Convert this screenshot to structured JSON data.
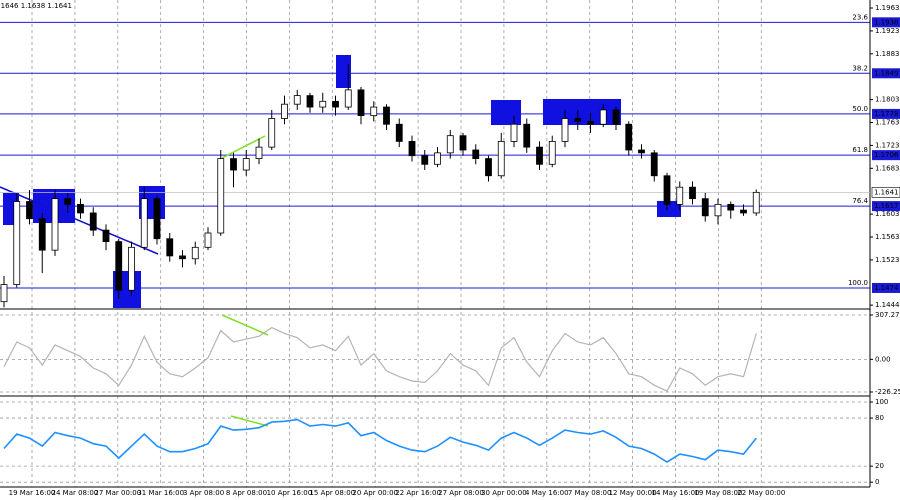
{
  "header": "1.1646 1.1638 1.1641",
  "chart_data": [
    {
      "type": "candlestick",
      "open": [
        1.145,
        1.148,
        1.1625,
        1.1595,
        1.154,
        1.163,
        1.162,
        1.1605,
        1.1575,
        1.1555,
        1.147,
        1.1545,
        1.163,
        1.156,
        1.153,
        1.1525,
        1.1545,
        1.157,
        1.17,
        1.168,
        1.17,
        1.172,
        1.177,
        1.1795,
        1.181,
        1.179,
        1.18,
        1.179,
        1.182,
        1.1775,
        1.179,
        1.176,
        1.173,
        1.1705,
        1.169,
        1.171,
        1.174,
        1.1715,
        1.17,
        1.167,
        1.173,
        1.176,
        1.172,
        1.169,
        1.173,
        1.177,
        1.1765,
        1.176,
        1.1785,
        1.176,
        1.1715,
        1.171,
        1.167,
        1.162,
        1.165,
        1.163,
        1.16,
        1.162,
        1.161,
        1.1605
      ],
      "high": [
        1.1495,
        1.164,
        1.1645,
        1.1605,
        1.1645,
        1.164,
        1.163,
        1.1615,
        1.1585,
        1.156,
        1.1555,
        1.165,
        1.1635,
        1.157,
        1.154,
        1.1555,
        1.158,
        1.1715,
        1.171,
        1.1715,
        1.1735,
        1.1785,
        1.181,
        1.182,
        1.1815,
        1.1815,
        1.181,
        1.1865,
        1.1825,
        1.18,
        1.1795,
        1.177,
        1.174,
        1.1715,
        1.172,
        1.175,
        1.1745,
        1.1725,
        1.1705,
        1.1745,
        1.1775,
        1.177,
        1.173,
        1.174,
        1.1785,
        1.1785,
        1.178,
        1.1795,
        1.179,
        1.1765,
        1.1725,
        1.1715,
        1.1675,
        1.166,
        1.166,
        1.164,
        1.163,
        1.1625,
        1.162,
        1.1646
      ],
      "low": [
        1.144,
        1.1475,
        1.1585,
        1.15,
        1.153,
        1.1605,
        1.1595,
        1.1565,
        1.154,
        1.1455,
        1.146,
        1.154,
        1.155,
        1.152,
        1.151,
        1.1515,
        1.154,
        1.1565,
        1.165,
        1.167,
        1.169,
        1.1715,
        1.176,
        1.1785,
        1.178,
        1.178,
        1.1775,
        1.1785,
        1.176,
        1.1765,
        1.175,
        1.172,
        1.1695,
        1.168,
        1.1685,
        1.17,
        1.1705,
        1.169,
        1.166,
        1.1665,
        1.172,
        1.171,
        1.168,
        1.1685,
        1.172,
        1.175,
        1.1745,
        1.1755,
        1.175,
        1.1705,
        1.17,
        1.166,
        1.161,
        1.161,
        1.162,
        1.159,
        1.1585,
        1.1595,
        1.16,
        1.16
      ],
      "close": [
        1.148,
        1.1625,
        1.1595,
        1.154,
        1.163,
        1.162,
        1.1605,
        1.1575,
        1.1555,
        1.147,
        1.1545,
        1.163,
        1.156,
        1.153,
        1.1525,
        1.1545,
        1.157,
        1.17,
        1.168,
        1.17,
        1.172,
        1.177,
        1.1795,
        1.181,
        1.179,
        1.18,
        1.179,
        1.182,
        1.1775,
        1.179,
        1.176,
        1.173,
        1.1705,
        1.169,
        1.171,
        1.174,
        1.1715,
        1.17,
        1.167,
        1.173,
        1.176,
        1.172,
        1.169,
        1.173,
        1.177,
        1.1765,
        1.176,
        1.1785,
        1.176,
        1.1715,
        1.171,
        1.167,
        1.162,
        1.165,
        1.163,
        1.16,
        1.162,
        1.161,
        1.1605,
        1.1641
      ],
      "ylim": [
        1.1439,
        1.1977
      ],
      "yticks": [
        1.1963,
        1.1923,
        1.1883,
        1.1803,
        1.1763,
        1.1723,
        1.1683,
        1.1603,
        1.1563,
        1.1523,
        1.1444
      ],
      "fib_levels": [
        {
          "label": "23.6",
          "price": 1.1938
        },
        {
          "label": "38.2",
          "price": 1.1849
        },
        {
          "label": "50.0",
          "price": 1.1778
        },
        {
          "label": "61.8",
          "price": 1.1706
        },
        {
          "label": "76.4",
          "price": 1.1617
        },
        {
          "label": "100.0",
          "price": 1.1474
        }
      ],
      "last_price": 1.1641,
      "fib_color": "#1a1ad6",
      "xtick_labels": [
        "19 Mar 16:00",
        "24 Mar 08:00",
        "27 Mar 00:00",
        "31 Mar 16:00",
        "3 Apr 08:00",
        "8 Apr 08:00",
        "10 Apr 16:00",
        "15 Apr 08:00",
        "20 Apr 00:00",
        "22 Apr 16:00",
        "27 Apr 08:00",
        "30 Apr 00:00",
        "4 May 16:00",
        "7 May 08:00",
        "12 May 00:00",
        "14 May 16:00",
        "19 May 08:00",
        "22 May 00:00"
      ]
    },
    {
      "type": "line",
      "color": "#b4b4b4",
      "values": [
        -50,
        120,
        80,
        -40,
        100,
        60,
        20,
        -60,
        -100,
        -180,
        -40,
        160,
        -20,
        -100,
        -120,
        -60,
        10,
        200,
        120,
        140,
        160,
        220,
        180,
        150,
        80,
        100,
        60,
        160,
        -40,
        40,
        -80,
        -120,
        -150,
        -160,
        -80,
        40,
        -40,
        -80,
        -180,
        80,
        150,
        -20,
        -120,
        60,
        180,
        120,
        100,
        150,
        40,
        -100,
        -120,
        -180,
        -220,
        -60,
        -100,
        -180,
        -120,
        -100,
        -120,
        180
      ],
      "ylim": [
        -247,
        335
      ],
      "yticks": [
        307.2712,
        {
          "value": 0,
          "label": "0.00"
        },
        -226.256
      ]
    },
    {
      "type": "line",
      "color": "#1e90ff",
      "values": [
        42,
        60,
        55,
        45,
        62,
        58,
        55,
        48,
        45,
        30,
        45,
        60,
        45,
        38,
        38,
        42,
        48,
        70,
        65,
        66,
        68,
        75,
        76,
        78,
        70,
        72,
        70,
        74,
        58,
        62,
        52,
        45,
        40,
        38,
        45,
        56,
        50,
        46,
        40,
        55,
        62,
        55,
        46,
        55,
        65,
        62,
        60,
        64,
        56,
        45,
        42,
        35,
        25,
        35,
        32,
        28,
        40,
        38,
        35,
        55
      ],
      "ylim": [
        -6,
        105
      ],
      "yticks": [
        100,
        80,
        20,
        0
      ]
    }
  ]
}
